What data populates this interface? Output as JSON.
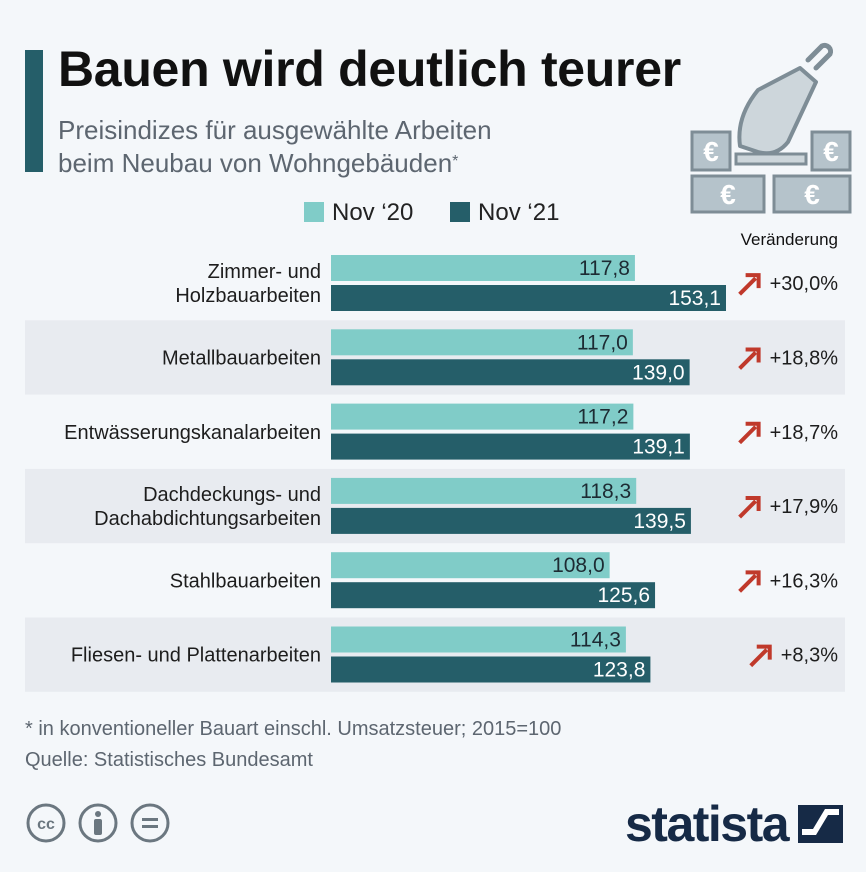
{
  "header": {
    "title": "Bauen wird deutlich teurer",
    "subtitle_line1": "Preisindizes für ausgewählte Arbeiten",
    "subtitle_line2": "beim Neubau von Wohngebäuden",
    "subtitle_mark": "*"
  },
  "legend": [
    {
      "label": "Nov ‘20",
      "color": "#80ccc8"
    },
    {
      "label": "Nov ‘21",
      "color": "#255e69"
    }
  ],
  "change_header": "Veränderung",
  "chart_data": {
    "type": "bar",
    "orientation": "horizontal",
    "title": "Bauen wird deutlich teurer",
    "subtitle": "Preisindizes für ausgewählte Arbeiten beim Neubau von Wohngebäuden*",
    "categories": [
      [
        "Zimmer- und",
        "Holzbauarbeiten"
      ],
      [
        "Metallbauarbeiten"
      ],
      [
        "Entwässerungskanalarbeiten"
      ],
      [
        "Dachdeckungs- und",
        "Dachabdichtungsarbeiten"
      ],
      [
        "Stahlbauarbeiten"
      ],
      [
        "Fliesen- und Plattenarbeiten"
      ]
    ],
    "series": [
      {
        "name": "Nov ‘20",
        "color": "#80ccc8",
        "values": [
          117.8,
          117.0,
          117.2,
          118.3,
          108.0,
          114.3
        ],
        "labels": [
          "117,8",
          "117,0",
          "117,2",
          "118,3",
          "108,0",
          "114,3"
        ]
      },
      {
        "name": "Nov ‘21",
        "color": "#255e69",
        "values": [
          153.1,
          139.0,
          139.1,
          139.5,
          125.6,
          123.8
        ],
        "labels": [
          "153,1",
          "139,0",
          "139,1",
          "139,5",
          "125,6",
          "123,8"
        ]
      }
    ],
    "changes": [
      "+30,0%",
      "+18,8%",
      "+18,7%",
      "+17,9%",
      "+16,3%",
      "+8,3%"
    ],
    "xlim": [
      0,
      153.1
    ],
    "xlabel": "",
    "ylabel": "",
    "grid": false,
    "legend_position": "top"
  },
  "footer": {
    "footnote": "* in konventioneller Bauart einschl. Umsatzsteuer; 2015=100",
    "source": "Quelle: Statistisches Bundesamt",
    "brand": "statista"
  },
  "colors": {
    "accent": "#255e69",
    "light_bar": "#80ccc8",
    "dark_bar": "#255e69",
    "arrow": "#c0392b",
    "band": "#e8ebf0",
    "brand": "#162a46"
  },
  "icons": [
    "trowel-icon",
    "euro-icon",
    "arrow-up-right-icon",
    "cc-icon",
    "by-icon",
    "nd-icon",
    "statista-logo-icon"
  ]
}
